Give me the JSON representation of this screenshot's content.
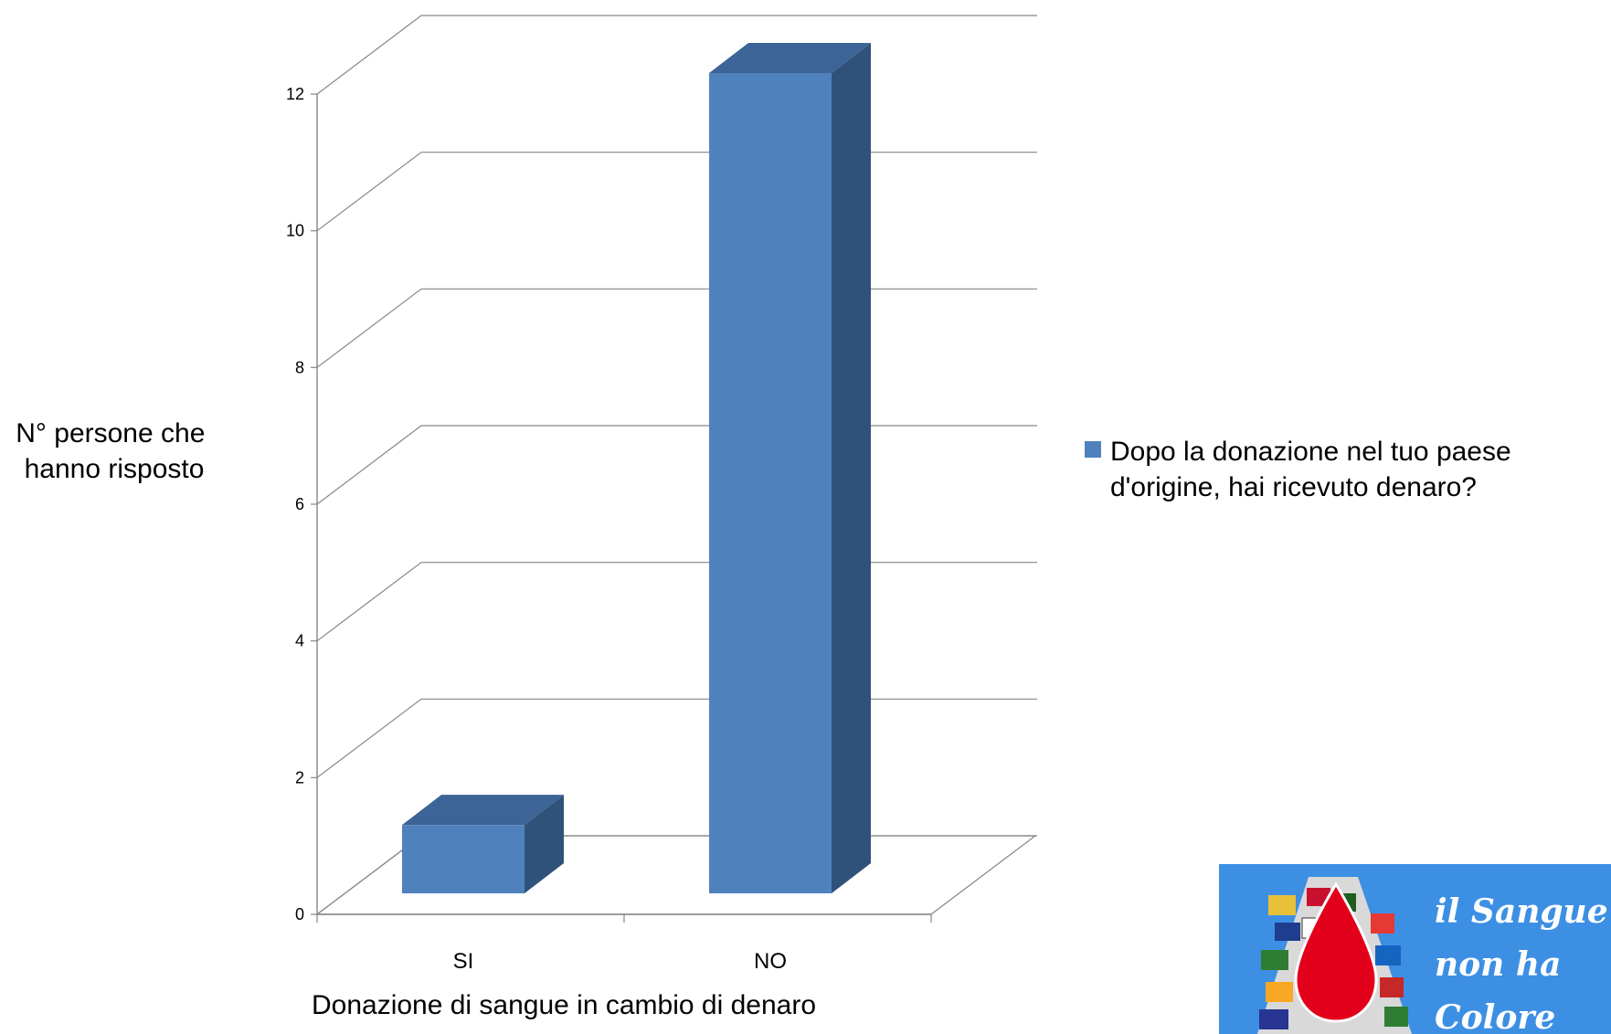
{
  "chart_data": {
    "type": "bar",
    "categories": [
      "SI",
      "NO"
    ],
    "series": [
      {
        "name": "Dopo la donazione nel tuo paese d'origine, hai ricevuto denaro?",
        "legend_lines": [
          "Dopo la donazione nel tuo paese",
          "d'origine, hai ricevuto denaro?"
        ],
        "values": [
          1,
          12
        ]
      }
    ],
    "ylabel_lines": [
      "N° persone che",
      "hanno risposto"
    ],
    "xlabel": "Donazione di sangue in cambio di denaro",
    "ylim": [
      0,
      12
    ],
    "yticks": [
      0,
      2,
      4,
      6,
      8,
      10,
      12
    ],
    "grid": true,
    "legend_position": "right",
    "style": "3d-column",
    "colors": {
      "front": "#4f81bd",
      "side": "#30527a",
      "top": "#3c6496",
      "grid": "#868686"
    }
  },
  "logo": {
    "text_lines": [
      "il Sangue",
      "non ha",
      "Colore"
    ],
    "background": "#3d8fe4"
  }
}
